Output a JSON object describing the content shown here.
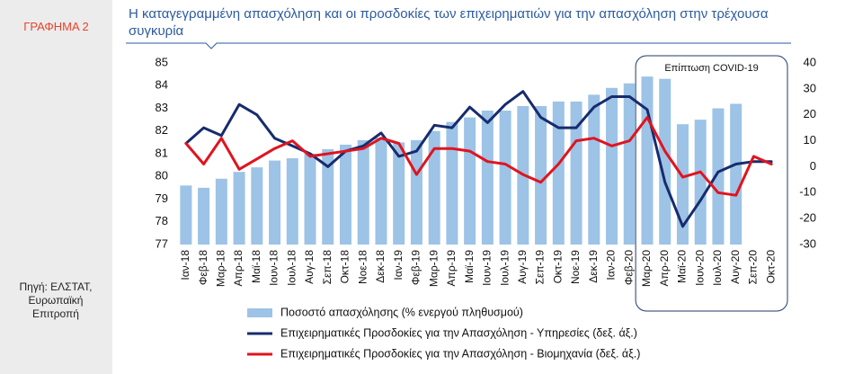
{
  "sidebar": {
    "label": "ΓΡΑΦΗΜΑ 2",
    "source": "Πηγή: ΕΛΣΤΑΤ, Ευρωπαϊκή Επιτροπή"
  },
  "chart_data": {
    "type": "bar",
    "title": "Η καταγεγραμμένη απασχόληση και οι προσδοκίες των επιχειρηματιών για την απασχόληση στην τρέχουσα συγκυρία",
    "annotation": "Επίπτωση COVID-19",
    "categories": [
      "Ιαν-18",
      "Φεβ-18",
      "Μαρ-18",
      "Απρ-18",
      "Μαϊ-18",
      "Ιουν-18",
      "Ιουλ-18",
      "Αυγ-18",
      "Σεπ-18",
      "Οκτ-18",
      "Νοε-18",
      "Δεκ-18",
      "Ιαν-19",
      "Φεβ-19",
      "Μαρ-19",
      "Απρ-19",
      "Μαϊ-19",
      "Ιουν-19",
      "Ιουλ-19",
      "Αυγ-19",
      "Σεπ-19",
      "Οκτ-19",
      "Νοε-19",
      "Δεκ-19",
      "Ιαν-20",
      "Φεβ-20",
      "Μαρ-20",
      "Απρ-20",
      "Μαϊ-20",
      "Ιουν-20",
      "Ιουλ-20",
      "Αυγ-20",
      "Σεπ-20",
      "Οκτ-20"
    ],
    "series": [
      {
        "name": "Ποσοστό απασχόλησης (% ενεργού πληθυσμού)",
        "type": "bar",
        "color": "#9dc3e6",
        "values": [
          79.6,
          79.5,
          79.9,
          80.2,
          80.4,
          80.7,
          80.8,
          81.0,
          81.2,
          81.4,
          81.6,
          81.7,
          81.5,
          81.6,
          82.0,
          82.4,
          82.6,
          82.9,
          82.9,
          83.1,
          83.1,
          83.3,
          83.3,
          83.6,
          83.9,
          84.1,
          84.4,
          84.3,
          82.3,
          82.5,
          83.0,
          83.2,
          null,
          null
        ]
      },
      {
        "name": "Επιχειρηματικές Προσδοκίες για την Απασχόληση  - Υπηρεσίες  (δεξ. άξ.)",
        "type": "line",
        "axis": "y2",
        "color": "#172c6e",
        "values": [
          9,
          15,
          12,
          24,
          20,
          11,
          8,
          5,
          0,
          6,
          8,
          13,
          4,
          6,
          16,
          15,
          23,
          17,
          24,
          29,
          19,
          15,
          15,
          23,
          27,
          27,
          22,
          -6,
          -23,
          -13,
          -2,
          1,
          2,
          2
        ]
      },
      {
        "name": "Επιχειρηματικές Προσδοκίες για την Απασχόληση  - Βιομηχανία (δεξ. άξ.)",
        "type": "line",
        "axis": "y2",
        "color": "#e0141e",
        "values": [
          9,
          1,
          11,
          -1,
          3,
          7,
          10,
          4,
          5,
          6,
          7,
          11,
          9,
          -3,
          7,
          7,
          6,
          2,
          1,
          -3,
          -6,
          1,
          10,
          11,
          8,
          10,
          19,
          6,
          -4,
          -2,
          -10,
          -11,
          4,
          1
        ]
      }
    ],
    "ylim": [
      77,
      85
    ],
    "yticks": [
      77,
      78,
      79,
      80,
      81,
      82,
      83,
      84,
      85
    ],
    "y2lim": [
      -30,
      40
    ],
    "y2ticks": [
      -30,
      -20,
      -10,
      0,
      10,
      20,
      30,
      40
    ]
  }
}
